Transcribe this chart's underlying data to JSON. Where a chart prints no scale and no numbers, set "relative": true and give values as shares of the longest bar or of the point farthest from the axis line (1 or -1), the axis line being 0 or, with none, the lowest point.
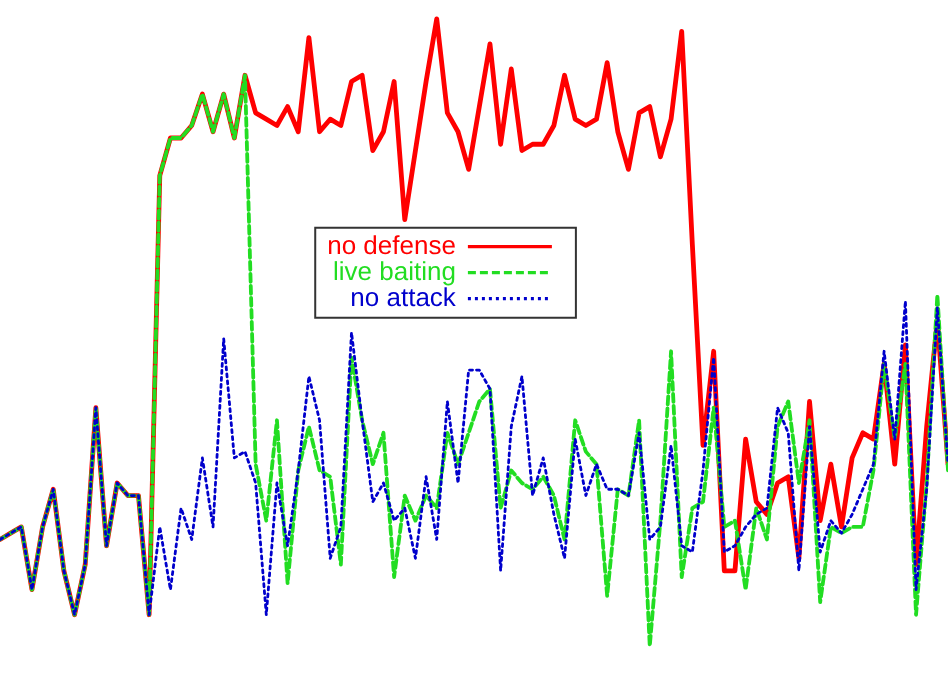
{
  "chart_data": {
    "type": "line",
    "relative": true,
    "categories": [
      null,
      null,
      null,
      null,
      null,
      null,
      null,
      null,
      null,
      null,
      null,
      null,
      null,
      null,
      null,
      null,
      null,
      null,
      null,
      null,
      null,
      null,
      null,
      null,
      null,
      null,
      null,
      null,
      null,
      null,
      null,
      null,
      null,
      null,
      null,
      null,
      null,
      null,
      null,
      null,
      null,
      null,
      null,
      null,
      null,
      null,
      null,
      null,
      null,
      null,
      null,
      null,
      null,
      null,
      null,
      null,
      null,
      null,
      null,
      null,
      null,
      null,
      null,
      null,
      null,
      null,
      null,
      null,
      null,
      null,
      null,
      null,
      null,
      null,
      null,
      null,
      null,
      null,
      null,
      null,
      null,
      null,
      null,
      null,
      null,
      null,
      null,
      null,
      null,
      null
    ],
    "series": [
      {
        "name": "no defense",
        "color": "#ff0000",
        "line_style": "solid",
        "values": [
          0.17,
          0.18,
          0.19,
          0.09,
          0.19,
          0.25,
          0.12,
          0.05,
          0.13,
          0.38,
          0.16,
          0.26,
          0.24,
          0.24,
          0.05,
          0.75,
          0.81,
          0.81,
          0.83,
          0.88,
          0.82,
          0.88,
          0.81,
          0.91,
          0.85,
          0.84,
          0.83,
          0.86,
          0.82,
          0.97,
          0.82,
          0.84,
          0.83,
          0.9,
          0.91,
          0.79,
          0.82,
          0.9,
          0.68,
          0.79,
          0.9,
          1.0,
          0.85,
          0.82,
          0.76,
          0.86,
          0.96,
          0.8,
          0.92,
          0.79,
          0.8,
          0.8,
          0.83,
          0.91,
          0.84,
          0.83,
          0.84,
          0.93,
          0.82,
          0.76,
          0.85,
          0.86,
          0.78,
          0.84,
          0.98,
          0.64,
          0.32,
          0.47,
          0.12,
          0.12,
          0.33,
          0.23,
          0.21,
          0.26,
          0.27,
          0.14,
          0.39,
          0.2,
          0.29,
          0.19,
          0.3,
          0.34,
          0.33,
          0.45,
          0.29,
          0.48,
          0.13,
          0.35,
          0.52,
          0.29
        ]
      },
      {
        "name": "live baiting",
        "color": "#22dd22",
        "line_style": "dashed",
        "values": [
          0.17,
          0.18,
          0.19,
          0.09,
          0.19,
          0.25,
          0.12,
          0.05,
          0.13,
          0.38,
          0.16,
          0.26,
          0.24,
          0.24,
          0.05,
          0.75,
          0.81,
          0.81,
          0.83,
          0.88,
          0.82,
          0.88,
          0.81,
          0.91,
          0.29,
          0.2,
          0.36,
          0.1,
          0.28,
          0.35,
          0.28,
          0.27,
          0.13,
          0.46,
          0.36,
          0.29,
          0.34,
          0.11,
          0.24,
          0.2,
          0.24,
          0.22,
          0.34,
          0.29,
          0.34,
          0.39,
          0.41,
          0.22,
          0.28,
          0.26,
          0.25,
          0.27,
          0.24,
          0.17,
          0.36,
          0.31,
          0.29,
          0.08,
          0.25,
          0.24,
          0.36,
          0.0,
          0.2,
          0.47,
          0.11,
          0.22,
          0.23,
          0.38,
          0.19,
          0.2,
          0.09,
          0.22,
          0.17,
          0.35,
          0.39,
          0.26,
          0.36,
          0.07,
          0.19,
          0.18,
          0.19,
          0.19,
          0.28,
          0.45,
          0.33,
          0.45,
          0.05,
          0.26,
          0.56,
          0.28
        ]
      },
      {
        "name": "no attack",
        "color": "#0000cc",
        "line_style": "dotted",
        "values": [
          0.17,
          0.18,
          0.19,
          0.09,
          0.19,
          0.25,
          0.12,
          0.05,
          0.13,
          0.38,
          0.16,
          0.26,
          0.24,
          0.24,
          0.05,
          0.19,
          0.09,
          0.22,
          0.17,
          0.3,
          0.19,
          0.49,
          0.3,
          0.31,
          0.26,
          0.05,
          0.26,
          0.16,
          0.28,
          0.43,
          0.36,
          0.14,
          0.19,
          0.5,
          0.36,
          0.23,
          0.26,
          0.2,
          0.22,
          0.14,
          0.27,
          0.17,
          0.39,
          0.26,
          0.44,
          0.44,
          0.41,
          0.12,
          0.35,
          0.43,
          0.24,
          0.3,
          0.21,
          0.14,
          0.33,
          0.24,
          0.29,
          0.25,
          0.25,
          0.24,
          0.34,
          0.17,
          0.19,
          0.32,
          0.16,
          0.15,
          0.28,
          0.46,
          0.15,
          0.16,
          0.19,
          0.21,
          0.22,
          0.38,
          0.34,
          0.12,
          0.35,
          0.15,
          0.2,
          0.18,
          0.21,
          0.25,
          0.29,
          0.47,
          0.33,
          0.55,
          0.09,
          0.25,
          0.54,
          0.29
        ]
      }
    ],
    "legend": "top",
    "marker": "none"
  }
}
